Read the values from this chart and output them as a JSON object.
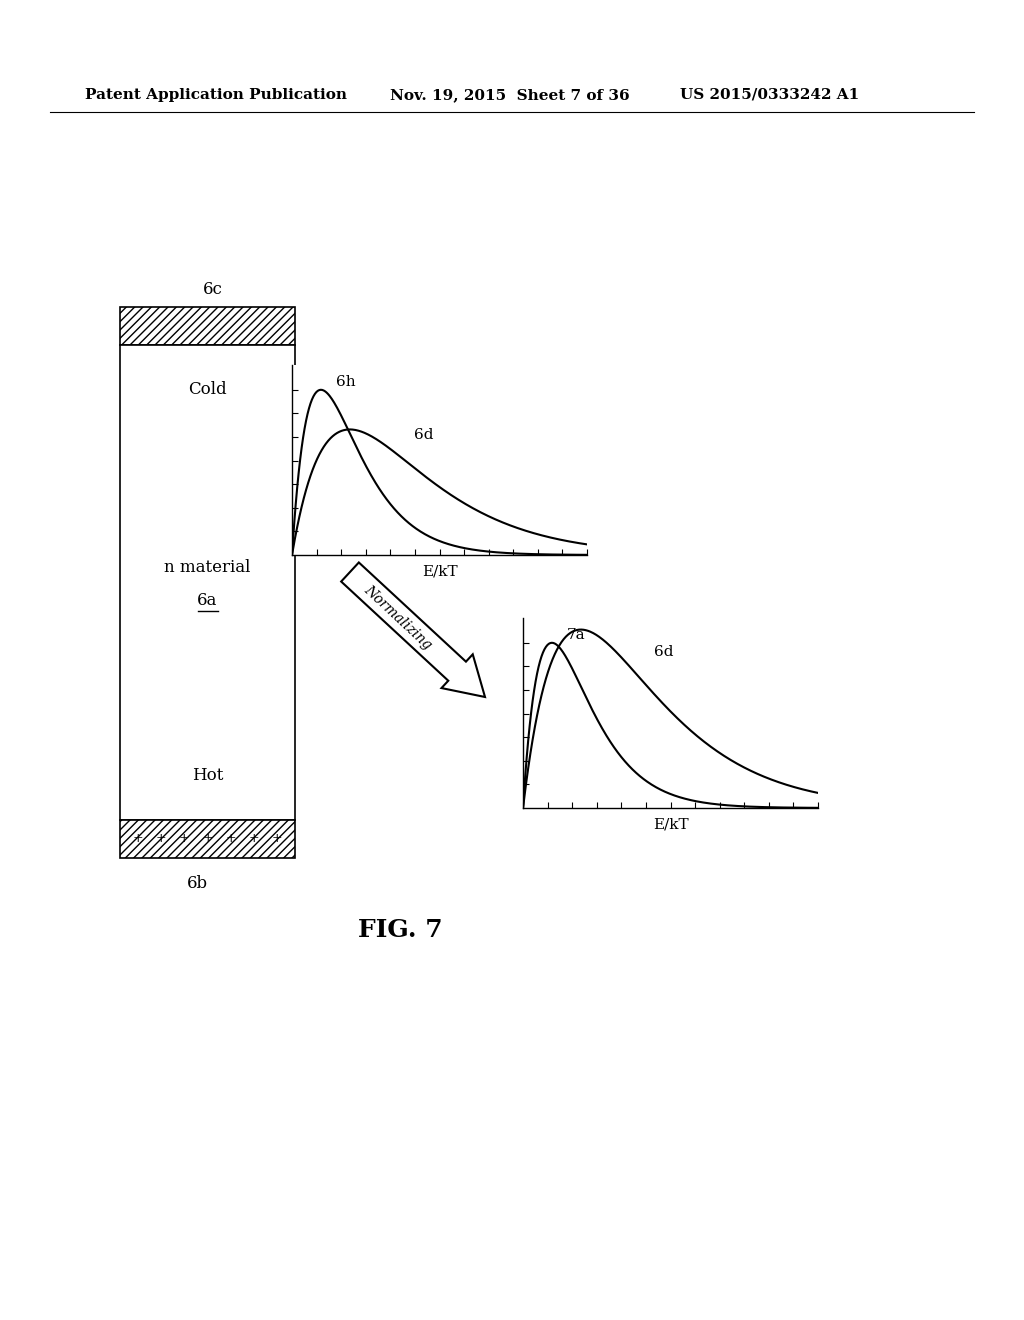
{
  "bg_color": "#ffffff",
  "header_left": "Patent Application Publication",
  "header_mid": "Nov. 19, 2015  Sheet 7 of 36",
  "header_right": "US 2015/0333242 A1",
  "fig_label": "FIG. 7",
  "box_label": "6c",
  "box_bottom_label": "6b",
  "box_text_top": "Cold",
  "box_text_mid": "n material",
  "box_text_6a": "6a",
  "box_text_bot": "Hot",
  "graph1_label_curve1": "6h",
  "graph1_label_curve2": "6d",
  "graph1_xlabel": "E/kT",
  "graph2_label_curve1": "7a",
  "graph2_label_curve2": "6d",
  "graph2_xlabel": "E/kT",
  "arrow_label": "Normalizing"
}
